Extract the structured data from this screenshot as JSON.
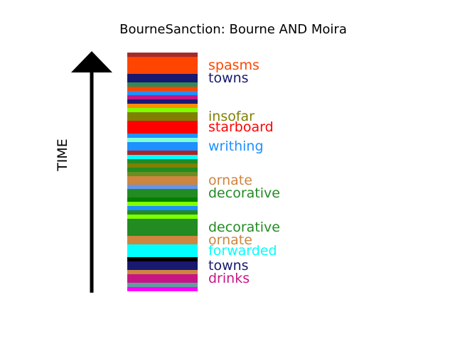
{
  "title": "BourneSanction: Bourne AND Moira",
  "axis_label": "TIME",
  "chart_data": {
    "type": "bar",
    "title": "BourneSanction: Bourne AND Moira",
    "ylabel": "TIME",
    "direction": "time increases upward",
    "ylim": [
      0,
      51
    ],
    "segments": [
      {
        "start": 50,
        "end": 51,
        "color": "#a52a2a"
      },
      {
        "start": 46,
        "end": 50,
        "color": "#ff4500",
        "label": "spasms"
      },
      {
        "start": 44,
        "end": 46,
        "color": "#191970",
        "label": "towns"
      },
      {
        "start": 43,
        "end": 44,
        "color": "#2e8b57"
      },
      {
        "start": 42,
        "end": 43,
        "color": "#ff4500"
      },
      {
        "start": 41,
        "end": 42,
        "color": "#1e90ff"
      },
      {
        "start": 40,
        "end": 41,
        "color": "#c71585"
      },
      {
        "start": 39,
        "end": 40,
        "color": "#191970"
      },
      {
        "start": 38,
        "end": 39,
        "color": "#ff8c00"
      },
      {
        "start": 37,
        "end": 38,
        "color": "#7fff00"
      },
      {
        "start": 35,
        "end": 37,
        "color": "#808000",
        "label": "insofar"
      },
      {
        "start": 32,
        "end": 35,
        "color": "#ff0000",
        "label": "starboard"
      },
      {
        "start": 31,
        "end": 32,
        "color": "#1e90ff"
      },
      {
        "start": 30,
        "end": 31,
        "color": "#7fffd4"
      },
      {
        "start": 28,
        "end": 30,
        "color": "#1e90ff",
        "label": "writhing"
      },
      {
        "start": 27,
        "end": 28,
        "color": "#b22222"
      },
      {
        "start": 26,
        "end": 27,
        "color": "#00ffff"
      },
      {
        "start": 25,
        "end": 26,
        "color": "#228b22"
      },
      {
        "start": 24,
        "end": 25,
        "color": "#808000"
      },
      {
        "start": 23,
        "end": 24,
        "color": "#228b22"
      },
      {
        "start": 22,
        "end": 23,
        "color": "#6b8e23"
      },
      {
        "start": 20,
        "end": 22,
        "color": "#cd853f",
        "label": "ornate"
      },
      {
        "start": 19,
        "end": 20,
        "color": "#6495ed"
      },
      {
        "start": 17,
        "end": 19,
        "color": "#228b22",
        "label": "decorative"
      },
      {
        "start": 16,
        "end": 17,
        "color": "#008000"
      },
      {
        "start": 15,
        "end": 16,
        "color": "#7fff00"
      },
      {
        "start": 14,
        "end": 15,
        "color": "#1e90ff"
      },
      {
        "start": 13,
        "end": 14,
        "color": "#228b22"
      },
      {
        "start": 12,
        "end": 13,
        "color": "#7fff00"
      },
      {
        "start": 8,
        "end": 12,
        "color": "#228b22",
        "label": "decorative"
      },
      {
        "start": 6,
        "end": 8,
        "color": "#cd853f",
        "label": "ornate"
      },
      {
        "start": 3,
        "end": 6,
        "color": "#00ffff",
        "label": "forwarded"
      },
      {
        "start": 2,
        "end": 3,
        "color": "#000000"
      },
      {
        "start": 0,
        "end": 2,
        "color": "#191970",
        "label": "towns"
      },
      {
        "start": -1,
        "end": 0,
        "color": "#cd853f"
      },
      {
        "start": -3,
        "end": -1,
        "color": "#c71585",
        "label": "drinks"
      },
      {
        "start": -4,
        "end": -3,
        "color": "#5f9ea0"
      },
      {
        "start": -5,
        "end": -4,
        "color": "#ff00ff"
      }
    ]
  }
}
